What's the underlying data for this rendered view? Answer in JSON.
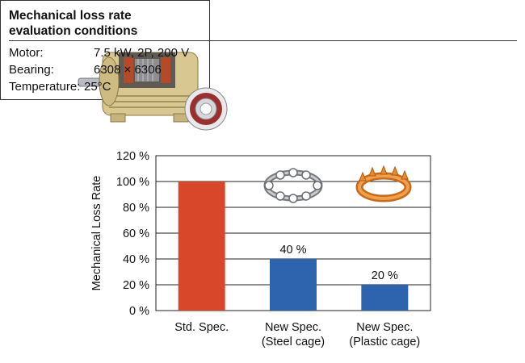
{
  "conditions": {
    "title_line1": "Mechanical loss rate",
    "title_line2": "evaluation conditions",
    "rows": [
      {
        "label": "Motor:",
        "value": "7.5 kW, 2P, 200 V"
      },
      {
        "label": "Bearing:",
        "value": "6308 × 6306"
      },
      {
        "label": "Temperature:",
        "value": "25°C"
      }
    ]
  },
  "chart_data": {
    "type": "bar",
    "ylabel": "Mechanical Loss Rate",
    "ylim": [
      0,
      120
    ],
    "ytick_labels": [
      "0 %",
      "20 %",
      "40 %",
      "60 %",
      "80 %",
      "100 %",
      "120 %"
    ],
    "categories": [
      [
        "Std. Spec."
      ],
      [
        "New Spec.",
        "(Steel cage)"
      ],
      [
        "New Spec.",
        "(Plastic cage)"
      ]
    ],
    "values": [
      100,
      40,
      20
    ],
    "data_labels": [
      "",
      "40 %",
      "20 %"
    ],
    "colors": [
      "#d9472b",
      "#2e63ad",
      "#2e63ad"
    ],
    "grid": true
  }
}
